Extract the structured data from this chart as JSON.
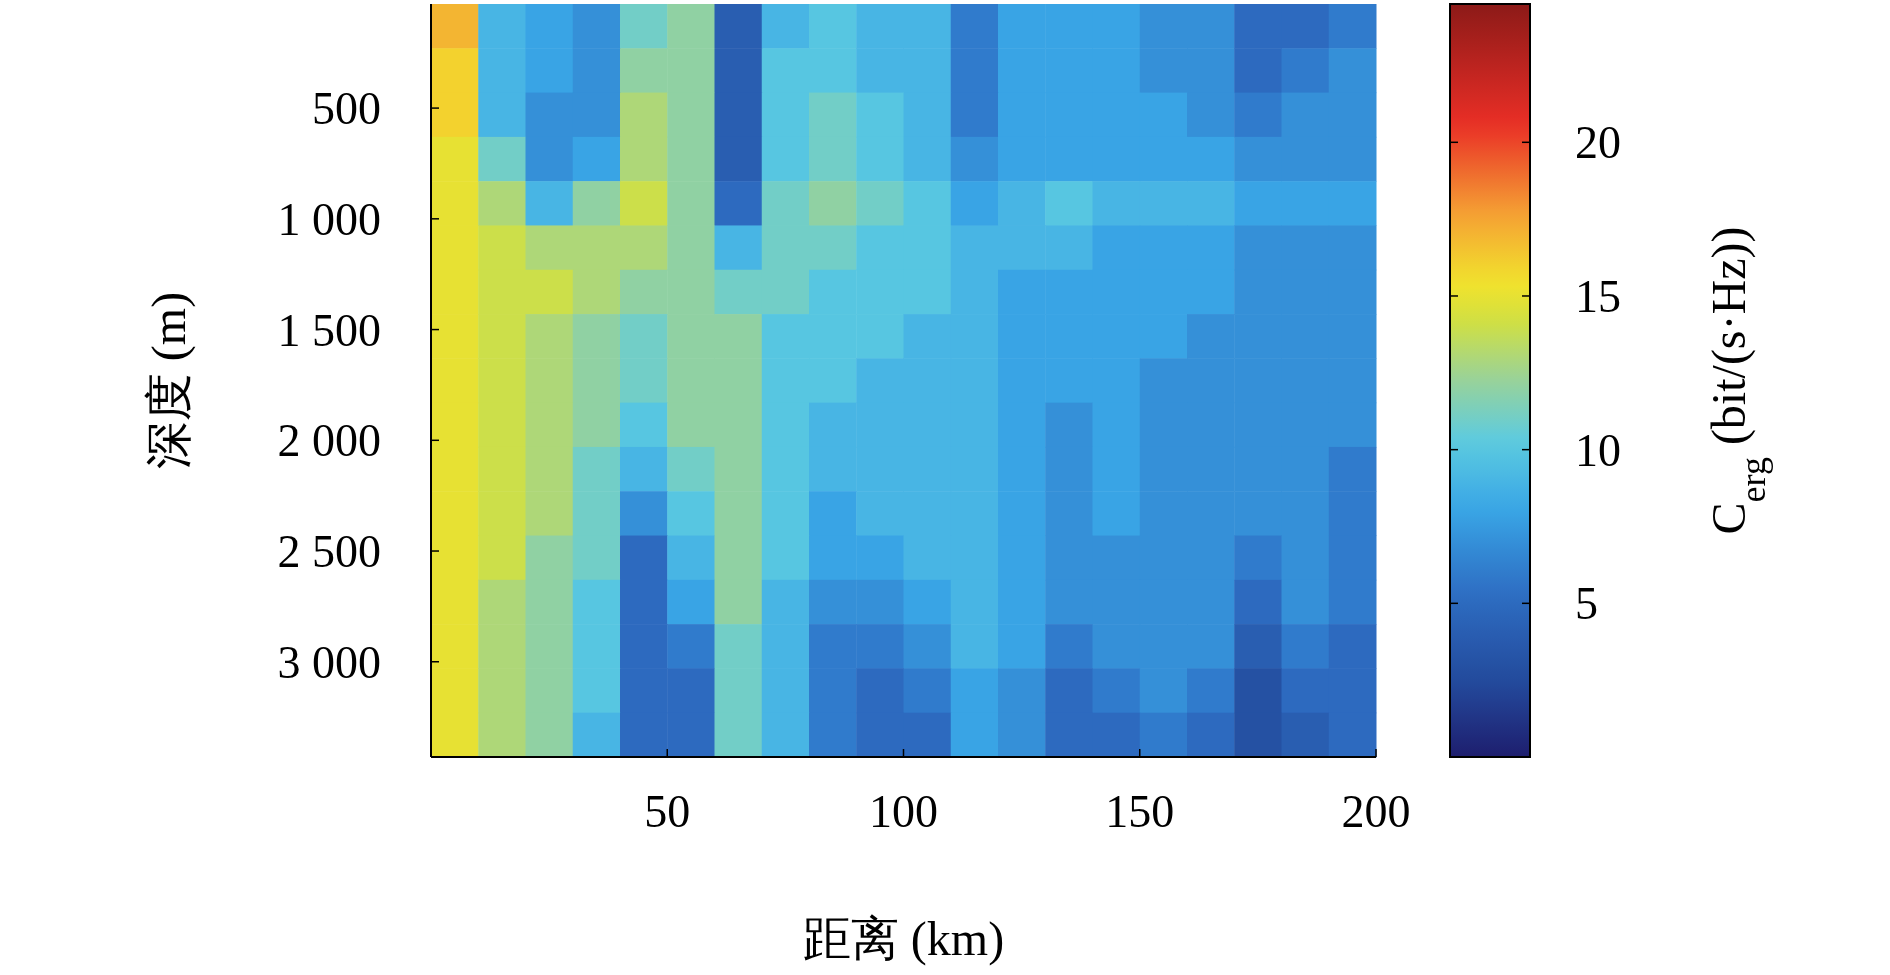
{
  "chart_data": {
    "type": "heatmap",
    "xlabel": "距离 (km)",
    "ylabel": "深度 (m)",
    "clabel": "C$_{erg}$ (bit/(s·Hz))",
    "x": [
      5,
      15,
      25,
      35,
      45,
      55,
      65,
      75,
      85,
      95,
      105,
      115,
      125,
      135,
      145,
      155,
      165,
      175,
      185,
      195
    ],
    "y": [
      130,
      330,
      530,
      730,
      930,
      1130,
      1330,
      1530,
      1730,
      1930,
      2130,
      2330,
      2530,
      2730,
      2930,
      3130,
      3330
    ],
    "xlim": [
      0,
      200
    ],
    "xticks": [
      50,
      100,
      150,
      200
    ],
    "ylim": [
      3430,
      30
    ],
    "yticks": [
      500,
      {
        "value": 1000,
        "label": "1 000"
      },
      {
        "value": 1500,
        "label": "1 500"
      },
      {
        "value": 2000,
        "label": "2 000"
      },
      {
        "value": 2500,
        "label": "2 500"
      },
      {
        "value": 3000,
        "label": "3 000"
      }
    ],
    "clim": [
      0,
      24.5
    ],
    "cticks": [
      5,
      10,
      15,
      20
    ],
    "cells": [
      [
        17,
        9,
        8,
        7,
        11,
        12,
        4,
        9,
        10,
        9,
        9,
        6,
        8,
        8,
        8,
        7,
        7,
        5,
        5,
        6
      ],
      [
        16,
        9,
        8,
        7,
        12,
        12,
        4,
        10,
        10,
        9,
        9,
        6,
        8,
        8,
        8,
        7,
        7,
        5,
        6,
        7
      ],
      [
        16,
        9,
        7,
        7,
        13,
        12,
        4,
        10,
        11,
        10,
        9,
        6,
        8,
        8,
        8,
        8,
        7,
        6,
        7,
        7
      ],
      [
        15,
        11,
        7,
        8,
        13,
        12,
        4,
        10,
        11,
        10,
        9,
        7,
        8,
        8,
        8,
        8,
        8,
        7,
        7,
        7
      ],
      [
        15,
        13,
        9,
        12,
        14,
        12,
        5,
        11,
        12,
        11,
        10,
        8,
        9,
        10,
        9,
        9,
        9,
        8,
        8,
        8
      ],
      [
        15,
        14,
        13,
        13,
        13,
        12,
        9,
        11,
        11,
        10,
        10,
        9,
        9,
        9,
        8,
        8,
        8,
        7,
        7,
        7
      ],
      [
        15,
        14,
        14,
        13,
        12,
        12,
        11,
        11,
        10,
        10,
        10,
        9,
        8,
        8,
        8,
        8,
        8,
        7,
        7,
        7
      ],
      [
        15,
        14,
        13,
        12,
        11,
        12,
        12,
        10,
        10,
        10,
        9,
        9,
        8,
        8,
        8,
        8,
        7,
        7,
        7,
        7
      ],
      [
        15,
        14,
        13,
        12,
        11,
        12,
        12,
        10,
        10,
        9,
        9,
        9,
        8,
        8,
        8,
        7,
        7,
        7,
        7,
        7
      ],
      [
        15,
        14,
        13,
        12,
        10,
        12,
        12,
        10,
        9,
        9,
        9,
        9,
        8,
        7,
        8,
        7,
        7,
        7,
        7,
        7
      ],
      [
        15,
        14,
        13,
        11,
        9,
        11,
        12,
        10,
        9,
        9,
        9,
        9,
        8,
        7,
        8,
        7,
        7,
        7,
        7,
        6
      ],
      [
        15,
        14,
        13,
        11,
        7,
        10,
        12,
        10,
        8,
        9,
        9,
        9,
        8,
        7,
        8,
        7,
        7,
        7,
        7,
        6
      ],
      [
        15,
        14,
        12,
        11,
        5,
        9,
        12,
        10,
        8,
        8,
        9,
        9,
        8,
        7,
        7,
        7,
        7,
        6,
        7,
        6
      ],
      [
        15,
        13,
        12,
        10,
        5,
        8,
        12,
        9,
        7,
        7,
        8,
        9,
        8,
        7,
        7,
        7,
        7,
        5,
        7,
        6
      ],
      [
        15,
        13,
        12,
        10,
        5,
        6,
        11,
        9,
        6,
        6,
        7,
        9,
        8,
        6,
        7,
        7,
        7,
        4,
        6,
        5
      ],
      [
        15,
        13,
        12,
        10,
        5,
        5,
        11,
        9,
        6,
        5,
        6,
        8,
        7,
        5,
        6,
        7,
        6,
        3,
        5,
        5
      ],
      [
        15,
        13,
        12,
        9,
        5,
        5,
        11,
        9,
        6,
        5,
        5,
        8,
        7,
        5,
        5,
        6,
        5,
        3,
        4,
        5
      ]
    ]
  }
}
